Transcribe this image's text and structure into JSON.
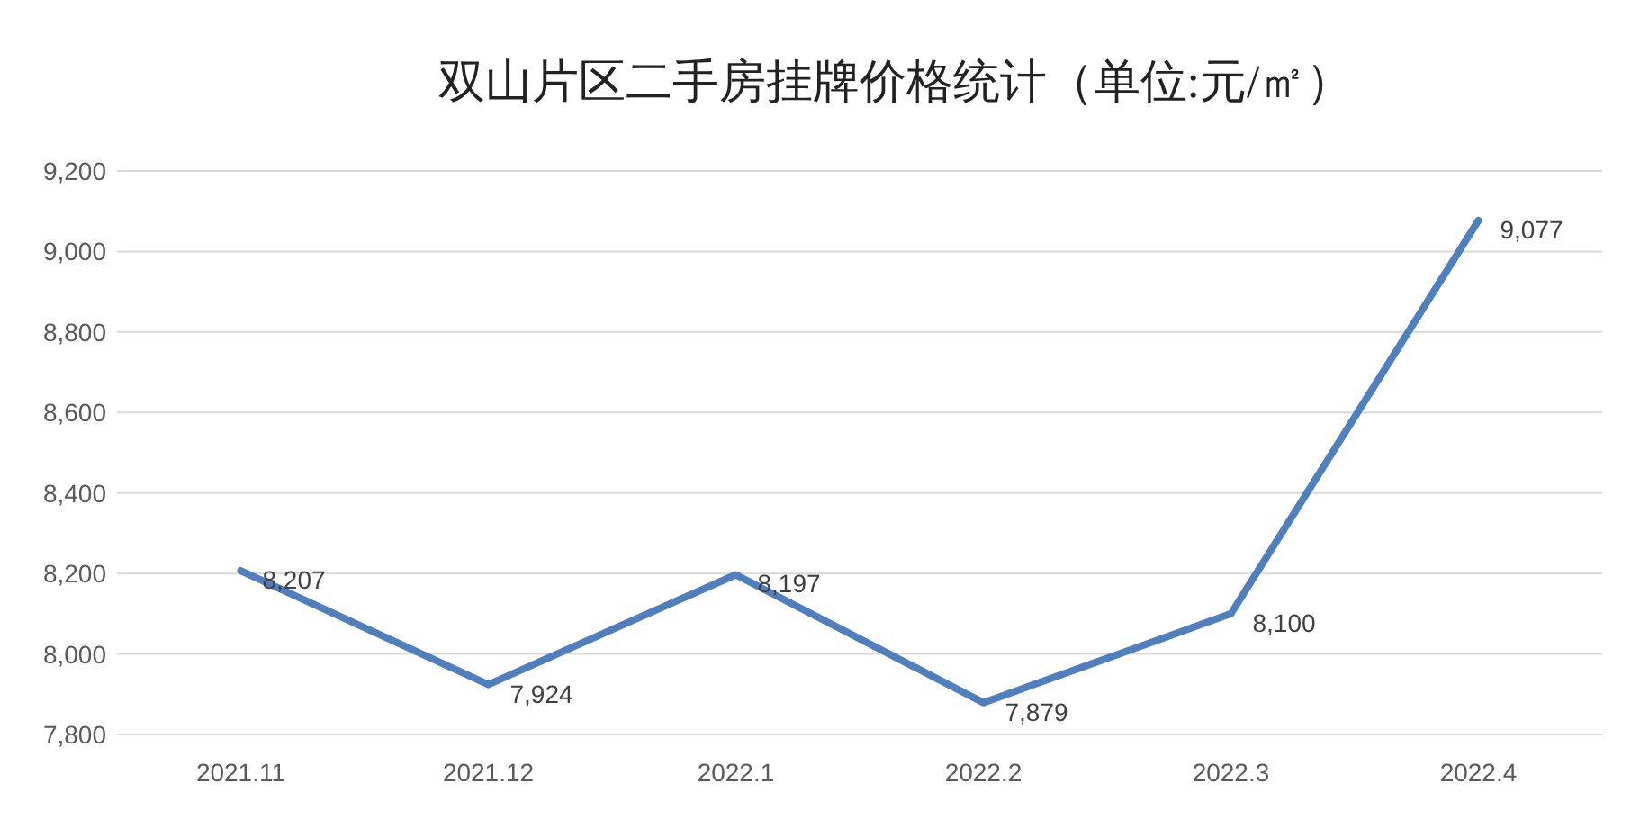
{
  "chart_data": {
    "type": "line",
    "title": "双山片区二手房挂牌价格统计（单位:元/㎡）",
    "categories": [
      "2021.11",
      "2021.12",
      "2022.1",
      "2022.2",
      "2022.3",
      "2022.4"
    ],
    "series": [
      {
        "color": "#4f7fbc",
        "values": [
          8207,
          7924,
          8197,
          7879,
          8100,
          9077
        ],
        "value_labels": [
          "8,207",
          "7,924",
          "8,197",
          "7,879",
          "8,100",
          "9,077"
        ]
      }
    ],
    "ylim": [
      7800,
      9200
    ],
    "yticks": [
      {
        "value": 7800,
        "label": "7,800"
      },
      {
        "value": 8000,
        "label": "8,000"
      },
      {
        "value": 8200,
        "label": "8,200"
      },
      {
        "value": 8400,
        "label": "8,400"
      },
      {
        "value": 8600,
        "label": "8,600"
      },
      {
        "value": 8800,
        "label": "8,800"
      },
      {
        "value": 9000,
        "label": "9,000"
      },
      {
        "value": 9200,
        "label": "9,200"
      }
    ],
    "grid": "y",
    "marker": "none",
    "line_style": "solid"
  }
}
